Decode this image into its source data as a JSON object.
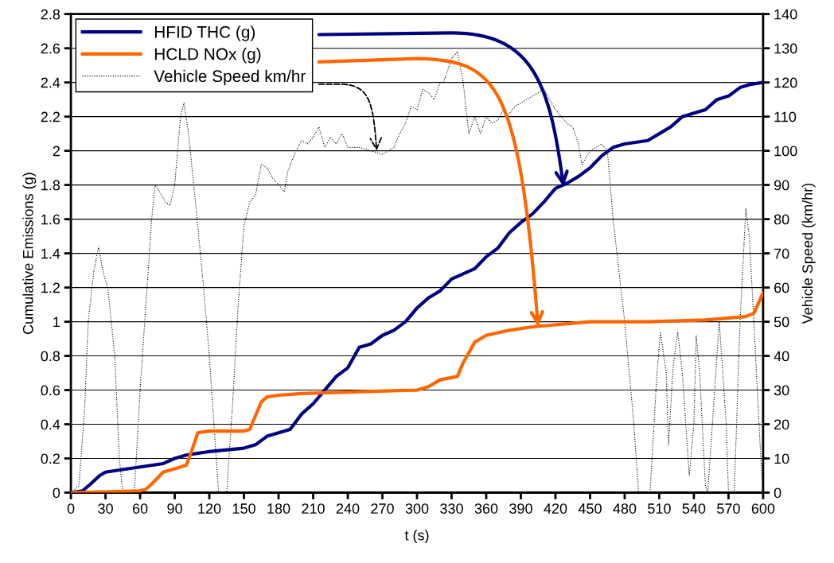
{
  "chart_data": {
    "type": "line",
    "xlabel": "t (s)",
    "ylabel": "Cumulative Emissions (g)",
    "y2label": "Vehicle Speed (km/hr)",
    "xlim": [
      0,
      600
    ],
    "xticks": [
      0,
      30,
      60,
      90,
      120,
      150,
      180,
      210,
      240,
      270,
      300,
      330,
      360,
      390,
      420,
      450,
      480,
      510,
      540,
      570,
      600
    ],
    "ylim": [
      0,
      2.8
    ],
    "yticks": [
      0,
      0.2,
      0.4,
      0.6,
      0.8,
      1,
      1.2,
      1.4,
      1.6,
      1.8,
      2,
      2.2,
      2.4,
      2.6,
      2.8
    ],
    "y2lim": [
      0,
      140
    ],
    "y2ticks": [
      0,
      10,
      20,
      30,
      40,
      50,
      60,
      70,
      80,
      90,
      100,
      110,
      120,
      130,
      140
    ],
    "grid": "y",
    "legend": "top left",
    "series": [
      {
        "name": "HFID THC (g)",
        "color": "#000080",
        "line_style": "solid",
        "x": [
          0,
          10,
          17,
          25,
          30,
          40,
          60,
          80,
          90,
          100,
          120,
          150,
          160,
          170,
          180,
          190,
          200,
          210,
          220,
          230,
          240,
          250,
          260,
          270,
          280,
          290,
          300,
          310,
          320,
          330,
          340,
          350,
          360,
          370,
          380,
          390,
          400,
          410,
          420,
          430,
          440,
          450,
          460,
          470,
          480,
          500,
          510,
          520,
          530,
          540,
          550,
          560,
          570,
          580,
          590,
          600
        ],
        "values": [
          0,
          0.01,
          0.05,
          0.1,
          0.12,
          0.13,
          0.15,
          0.17,
          0.2,
          0.22,
          0.24,
          0.26,
          0.28,
          0.33,
          0.35,
          0.37,
          0.46,
          0.52,
          0.6,
          0.68,
          0.73,
          0.85,
          0.87,
          0.92,
          0.95,
          1.0,
          1.08,
          1.14,
          1.18,
          1.25,
          1.28,
          1.31,
          1.38,
          1.43,
          1.52,
          1.58,
          1.63,
          1.7,
          1.78,
          1.81,
          1.85,
          1.9,
          1.97,
          2.02,
          2.04,
          2.06,
          2.1,
          2.14,
          2.2,
          2.22,
          2.24,
          2.3,
          2.32,
          2.37,
          2.39,
          2.4
        ]
      },
      {
        "name": "HCLD NOx (g)",
        "color": "#ff6600",
        "line_style": "solid",
        "x": [
          0,
          60,
          65,
          70,
          80,
          90,
          100,
          105,
          110,
          120,
          150,
          155,
          160,
          165,
          170,
          180,
          200,
          250,
          300,
          310,
          320,
          335,
          340,
          350,
          360,
          380,
          400,
          450,
          500,
          550,
          585,
          592,
          600
        ],
        "values": [
          0,
          0.01,
          0.02,
          0.05,
          0.12,
          0.14,
          0.16,
          0.25,
          0.35,
          0.36,
          0.36,
          0.37,
          0.45,
          0.53,
          0.56,
          0.57,
          0.58,
          0.59,
          0.6,
          0.62,
          0.66,
          0.68,
          0.76,
          0.88,
          0.92,
          0.95,
          0.97,
          1.0,
          1.0,
          1.01,
          1.03,
          1.05,
          1.17
        ]
      },
      {
        "name": "Vehicle Speed km/hr",
        "color": "#000000",
        "axis": "y2",
        "line_style": "dotted",
        "x": [
          0,
          7,
          12,
          15,
          20,
          24,
          27,
          30,
          32,
          38,
          42,
          45,
          55,
          60,
          66,
          70,
          73,
          77,
          82,
          86,
          90,
          95,
          98,
          102,
          108,
          115,
          120,
          125,
          128,
          135,
          140,
          145,
          150,
          155,
          160,
          165,
          170,
          175,
          180,
          185,
          188,
          195,
          200,
          205,
          210,
          215,
          220,
          225,
          230,
          235,
          240,
          250,
          260,
          270,
          280,
          285,
          290,
          295,
          300,
          305,
          310,
          315,
          320,
          323,
          330,
          335,
          340,
          345,
          350,
          355,
          360,
          365,
          370,
          375,
          378,
          385,
          400,
          410,
          415,
          420,
          430,
          435,
          440,
          443,
          450,
          460,
          465,
          470,
          480,
          488,
          492,
          502,
          508,
          511,
          516,
          518,
          522,
          526,
          530,
          536,
          540,
          542,
          545,
          550,
          552,
          558,
          562,
          568,
          570,
          575,
          580,
          585,
          588,
          592,
          598,
          600
        ],
        "values": [
          0,
          2,
          25,
          50,
          65,
          72,
          66,
          62,
          60,
          40,
          10,
          0,
          0,
          30,
          60,
          80,
          90,
          88,
          85,
          84,
          90,
          110,
          114,
          105,
          85,
          60,
          40,
          15,
          0,
          0,
          25,
          55,
          78,
          85,
          87,
          96,
          95,
          92,
          90,
          88,
          94,
          100,
          103,
          102,
          104,
          107,
          101,
          104,
          102,
          105,
          101,
          101,
          100,
          99,
          101,
          105,
          108,
          113,
          112,
          118,
          117,
          115,
          120,
          120,
          127,
          129,
          120,
          105,
          110,
          105,
          110,
          108,
          109,
          112,
          110,
          113,
          116,
          118,
          115,
          112,
          108,
          107,
          102,
          96,
          100,
          102,
          100,
          80,
          50,
          20,
          0,
          0,
          35,
          47,
          35,
          14,
          37,
          47,
          35,
          5,
          20,
          46,
          35,
          2,
          0,
          30,
          50,
          20,
          0,
          0,
          50,
          83,
          75,
          50,
          10,
          0
        ]
      }
    ]
  }
}
